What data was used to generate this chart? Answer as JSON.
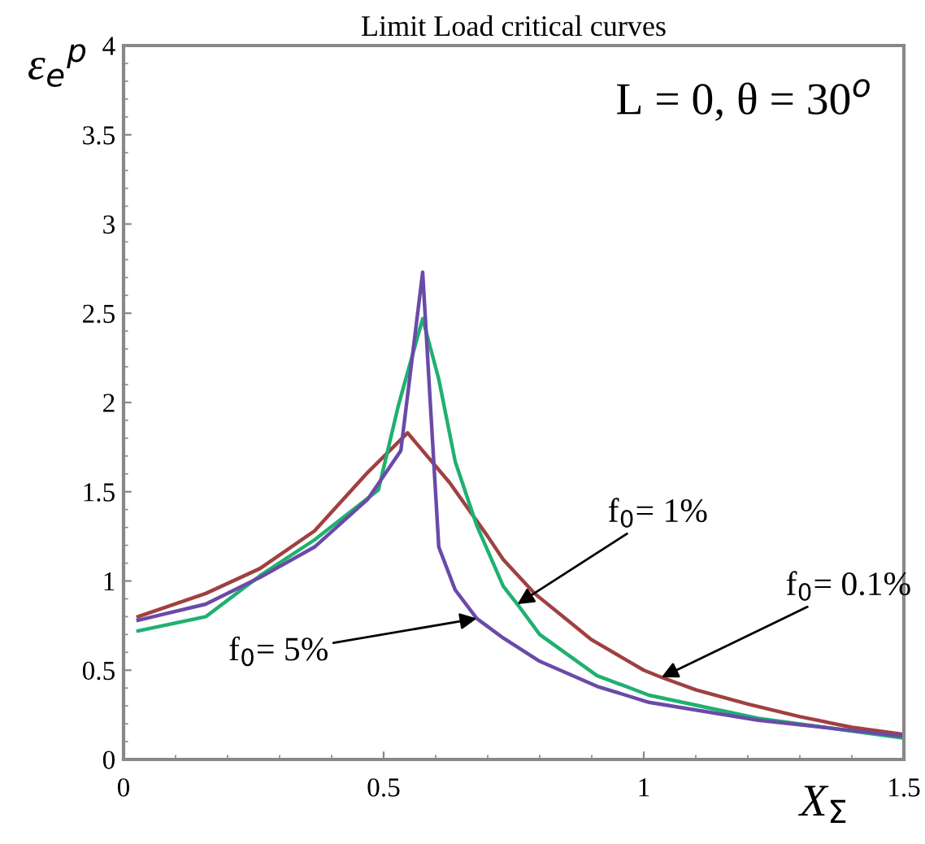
{
  "chart_data": {
    "type": "line",
    "title": "Limit Load critical curves",
    "xlabel": "X$_{Σ}$",
    "ylabel": "ε$_{e}$$^{p}$",
    "xlim": [
      0,
      1.5
    ],
    "xticks": [
      0,
      0.5,
      1,
      1.5
    ],
    "ylim": [
      0,
      4
    ],
    "yticks": [
      0,
      0.5,
      1,
      1.5,
      2,
      2.5,
      3,
      3.5,
      4
    ],
    "grid": false,
    "legend": false,
    "marker": "none",
    "line_style": "solid",
    "annotations": [
      "L = 0, θ = 30$^{o}$",
      {
        "text": "f$_{0}$= 5%",
        "x": 0.679,
        "y": 0.79
      },
      {
        "text": "f$_{0}$= 1%",
        "x": 0.757,
        "y": 0.87
      },
      {
        "text": "f$_{0}$= 0.1%",
        "x": 1.034,
        "y": 0.46
      }
    ],
    "series": [
      {
        "color": "#a04040",
        "x": [
          0.028,
          0.158,
          0.2625,
          0.367,
          0.47,
          0.546,
          0.627,
          0.7,
          0.73,
          0.79,
          0.9,
          1.0,
          1.034,
          1.1,
          1.2,
          1.3,
          1.4,
          1.5
        ],
        "values": [
          0.8,
          0.93,
          1.07,
          1.28,
          1.61,
          1.83,
          1.55,
          1.25,
          1.12,
          0.93,
          0.67,
          0.5,
          0.46,
          0.39,
          0.31,
          0.24,
          0.18,
          0.14
        ]
      },
      {
        "color": "#20b070",
        "x": [
          0.028,
          0.158,
          0.2625,
          0.367,
          0.49,
          0.528,
          0.575,
          0.606,
          0.6375,
          0.679,
          0.73,
          0.757,
          0.8,
          0.91,
          1.01,
          1.22,
          1.5
        ],
        "values": [
          0.72,
          0.8,
          1.03,
          1.23,
          1.51,
          1.98,
          2.47,
          2.13,
          1.67,
          1.31,
          0.97,
          0.87,
          0.7,
          0.47,
          0.36,
          0.23,
          0.12
        ]
      },
      {
        "color": "#6a4aa8",
        "x": [
          0.028,
          0.158,
          0.2625,
          0.367,
          0.47,
          0.533,
          0.575,
          0.59,
          0.606,
          0.6375,
          0.679,
          0.73,
          0.8,
          0.91,
          1.01,
          1.22,
          1.5
        ],
        "values": [
          0.78,
          0.87,
          1.02,
          1.19,
          1.46,
          1.73,
          2.73,
          1.98,
          1.19,
          0.95,
          0.79,
          0.68,
          0.55,
          0.41,
          0.32,
          0.22,
          0.13
        ]
      }
    ]
  }
}
